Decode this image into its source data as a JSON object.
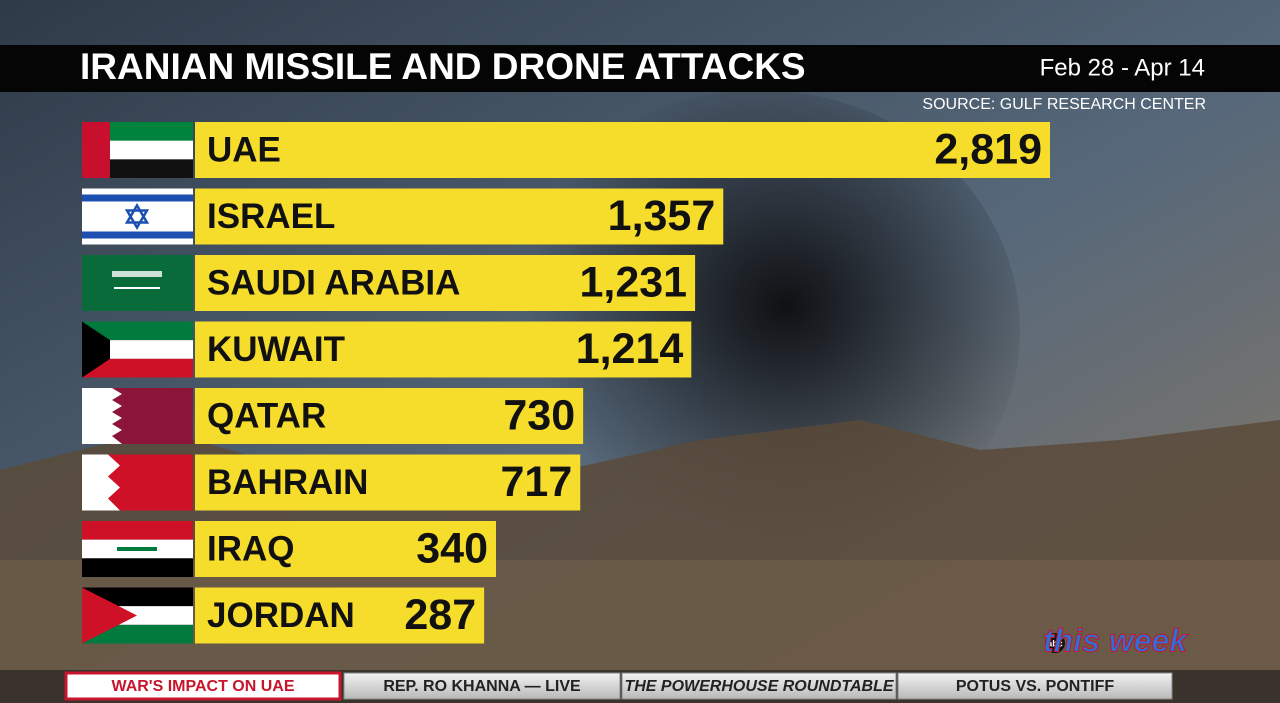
{
  "chart_data": {
    "type": "bar",
    "orientation": "horizontal",
    "title": "IRANIAN MISSILE AND DRONE ATTACKS",
    "subtitle": "Feb 28 - Apr 14",
    "source": "SOURCE: GULF RESEARCH CENTER",
    "categories": [
      "UAE",
      "ISRAEL",
      "SAUDI ARABIA",
      "KUWAIT",
      "QATAR",
      "BAHRAIN",
      "IRAQ",
      "JORDAN"
    ],
    "values": [
      2819,
      1357,
      1231,
      1214,
      730,
      717,
      340,
      287
    ],
    "value_labels": [
      "2,819",
      "1,357",
      "1,231",
      "1,214",
      "730",
      "717",
      "340",
      "287"
    ],
    "color": "#f6dc2b"
  },
  "ticker": [
    "WAR'S IMPACT ON UAE",
    "REP. RO KHANNA — LIVE",
    "THE POWERHOUSE ROUNDTABLE",
    "POTUS VS. PONTIFF"
  ],
  "network": "abc",
  "show": "this week"
}
